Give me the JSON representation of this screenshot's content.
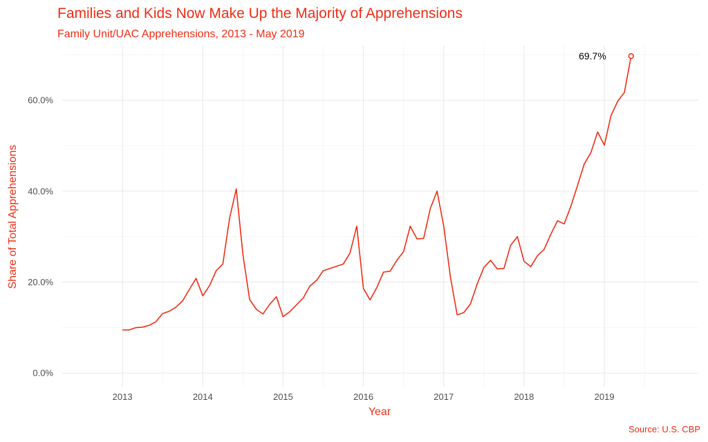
{
  "chart_data": {
    "type": "line",
    "title": "Families and Kids Now Make Up the Majority of Apprehensions",
    "subtitle": "Family Unit/UAC Apprehensions, 2013 - May 2019",
    "xlabel": "Year",
    "ylabel": "Share of Total Apprehensions",
    "caption": "Source: U.S. CBP",
    "annotation": "69.7%",
    "x_ticks": [
      "2013",
      "2014",
      "2015",
      "2016",
      "2017",
      "2018",
      "2019"
    ],
    "y_ticks": [
      "0.0%",
      "20.0%",
      "40.0%",
      "60.0%"
    ],
    "xlim": [
      2012.25,
      2020.17
    ],
    "ylim": [
      -0.03,
      0.72
    ],
    "grid": true,
    "accent_color": "#ee2c14",
    "series": [
      {
        "x": [
          2013.0,
          2013.083,
          2013.167,
          2013.25,
          2013.333,
          2013.417,
          2013.5,
          2013.583,
          2013.667,
          2013.75,
          2013.833,
          2013.917,
          2014.0,
          2014.083,
          2014.167,
          2014.25,
          2014.333,
          2014.417,
          2014.5,
          2014.583,
          2014.667,
          2014.75,
          2014.833,
          2014.917,
          2015.0,
          2015.083,
          2015.167,
          2015.25,
          2015.333,
          2015.417,
          2015.5,
          2015.583,
          2015.667,
          2015.75,
          2015.833,
          2015.917,
          2016.0,
          2016.083,
          2016.167,
          2016.25,
          2016.333,
          2016.417,
          2016.5,
          2016.583,
          2016.667,
          2016.75,
          2016.833,
          2016.917,
          2017.0,
          2017.083,
          2017.167,
          2017.25,
          2017.333,
          2017.417,
          2017.5,
          2017.583,
          2017.667,
          2017.75,
          2017.833,
          2017.917,
          2018.0,
          2018.083,
          2018.167,
          2018.25,
          2018.333,
          2018.417,
          2018.5,
          2018.583,
          2018.667,
          2018.75,
          2018.833,
          2018.917,
          2019.0,
          2019.083,
          2019.167,
          2019.25,
          2019.333
        ],
        "values": [
          0.095,
          0.095,
          0.1,
          0.101,
          0.105,
          0.113,
          0.131,
          0.136,
          0.145,
          0.159,
          0.184,
          0.208,
          0.17,
          0.192,
          0.225,
          0.24,
          0.34,
          0.405,
          0.26,
          0.162,
          0.14,
          0.13,
          0.151,
          0.168,
          0.124,
          0.135,
          0.15,
          0.165,
          0.191,
          0.204,
          0.225,
          0.23,
          0.235,
          0.24,
          0.264,
          0.323,
          0.186,
          0.161,
          0.188,
          0.222,
          0.224,
          0.248,
          0.267,
          0.323,
          0.295,
          0.296,
          0.362,
          0.4,
          0.323,
          0.212,
          0.128,
          0.133,
          0.152,
          0.196,
          0.232,
          0.248,
          0.229,
          0.23,
          0.281,
          0.3,
          0.246,
          0.234,
          0.258,
          0.272,
          0.305,
          0.335,
          0.328,
          0.367,
          0.413,
          0.46,
          0.485,
          0.53,
          0.501,
          0.566,
          0.598,
          0.617,
          0.697
        ]
      }
    ]
  }
}
